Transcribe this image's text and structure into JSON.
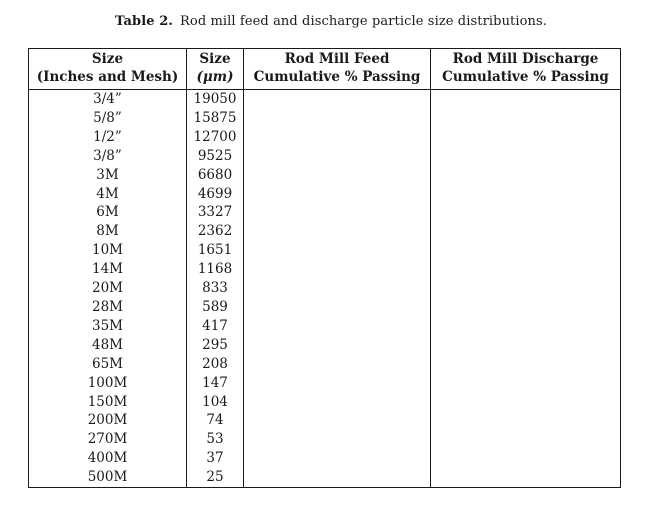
{
  "page": {
    "background_color": "#ffffff",
    "text_color": "#1a1a1a",
    "border_color": "#1a1a1a"
  },
  "caption": {
    "label": "Table 2.",
    "text": "Rod mill feed and discharge particle size distributions."
  },
  "table": {
    "headers": [
      {
        "line1": "Size",
        "line2": "(Inches and Mesh)"
      },
      {
        "line1": "Size",
        "line2": "(μm)"
      },
      {
        "line1": "Rod Mill Feed",
        "line2": "Cumulative % Passing"
      },
      {
        "line1": "Rod Mill Discharge",
        "line2": "Cumulative % Passing"
      }
    ],
    "rows": [
      {
        "size": "3/4”",
        "microns": "19050",
        "feed": "",
        "discharge": ""
      },
      {
        "size": "5/8”",
        "microns": "15875",
        "feed": "",
        "discharge": ""
      },
      {
        "size": "1/2”",
        "microns": "12700",
        "feed": "",
        "discharge": ""
      },
      {
        "size": "3/8”",
        "microns": "9525",
        "feed": "",
        "discharge": ""
      },
      {
        "size": "3M",
        "microns": "6680",
        "feed": "",
        "discharge": ""
      },
      {
        "size": "4M",
        "microns": "4699",
        "feed": "",
        "discharge": ""
      },
      {
        "size": "6M",
        "microns": "3327",
        "feed": "",
        "discharge": ""
      },
      {
        "size": "8M",
        "microns": "2362",
        "feed": "",
        "discharge": ""
      },
      {
        "size": "10M",
        "microns": "1651",
        "feed": "",
        "discharge": ""
      },
      {
        "size": "14M",
        "microns": "1168",
        "feed": "",
        "discharge": ""
      },
      {
        "size": "20M",
        "microns": "833",
        "feed": "",
        "discharge": ""
      },
      {
        "size": "28M",
        "microns": "589",
        "feed": "",
        "discharge": ""
      },
      {
        "size": "35M",
        "microns": "417",
        "feed": "",
        "discharge": ""
      },
      {
        "size": "48M",
        "microns": "295",
        "feed": "",
        "discharge": ""
      },
      {
        "size": "65M",
        "microns": "208",
        "feed": "",
        "discharge": ""
      },
      {
        "size": "100M",
        "microns": "147",
        "feed": "",
        "discharge": ""
      },
      {
        "size": "150M",
        "microns": "104",
        "feed": "",
        "discharge": ""
      },
      {
        "size": "200M",
        "microns": "74",
        "feed": "",
        "discharge": ""
      },
      {
        "size": "270M",
        "microns": "53",
        "feed": "",
        "discharge": ""
      },
      {
        "size": "400M",
        "microns": "37",
        "feed": "",
        "discharge": ""
      },
      {
        "size": "500M",
        "microns": "25",
        "feed": "",
        "discharge": ""
      }
    ]
  }
}
